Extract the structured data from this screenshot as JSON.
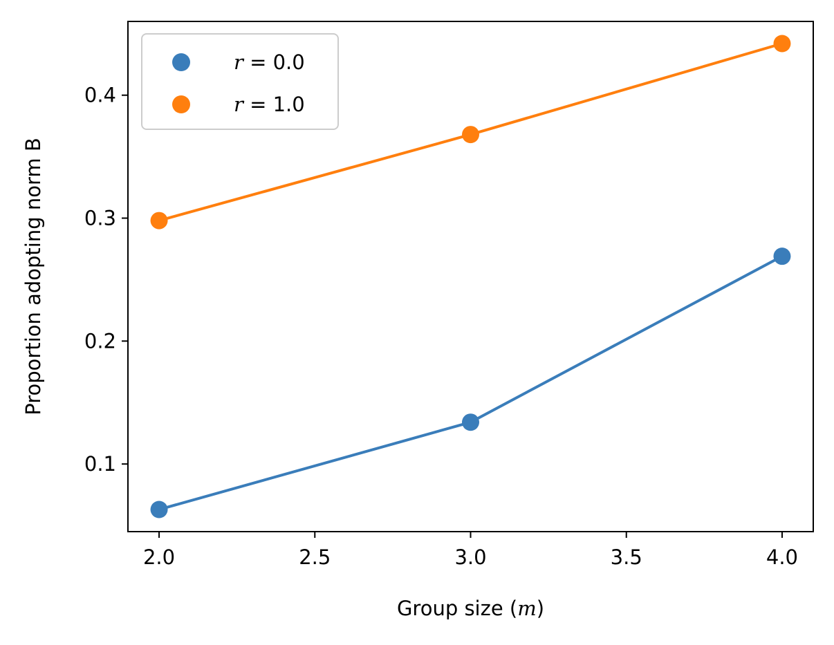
{
  "chart_data": {
    "type": "line",
    "xlabel_prefix": "Group size (",
    "xlabel_var": "m",
    "xlabel_suffix": ")",
    "ylabel": "Proportion adopting norm B",
    "xlim": [
      1.9,
      4.1
    ],
    "ylim": [
      0.045,
      0.46
    ],
    "xticks": [
      2.0,
      2.5,
      3.0,
      3.5,
      4.0
    ],
    "xtick_labels": [
      "2.0",
      "2.5",
      "3.0",
      "3.5",
      "4.0"
    ],
    "yticks": [
      0.1,
      0.2,
      0.3,
      0.4
    ],
    "ytick_labels": [
      "0.1",
      "0.2",
      "0.3",
      "0.4"
    ],
    "grid": false,
    "legend_position": "top-left",
    "series": [
      {
        "name": "r = 0.0",
        "legend_var": "r",
        "legend_rest": " = 0.0",
        "color": "#3a7dba",
        "x": [
          2.0,
          3.0,
          4.0
        ],
        "y": [
          0.063,
          0.134,
          0.269
        ]
      },
      {
        "name": "r = 1.0",
        "legend_var": "r",
        "legend_rest": " = 1.0",
        "color": "#ff7f0e",
        "x": [
          2.0,
          3.0,
          4.0
        ],
        "y": [
          0.298,
          0.368,
          0.442
        ]
      }
    ]
  }
}
